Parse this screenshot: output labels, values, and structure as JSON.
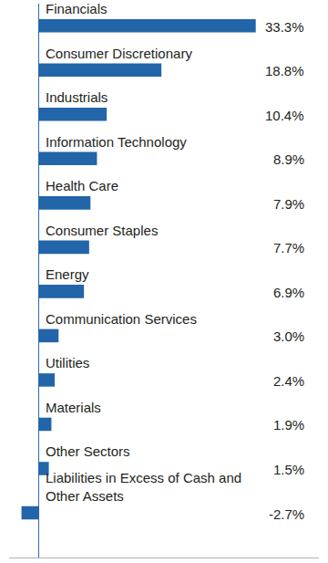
{
  "chart_data": {
    "type": "bar",
    "orientation": "horizontal",
    "categories": [
      "Financials",
      "Consumer Discretionary",
      "Industrials",
      "Information Technology",
      "Health Care",
      "Consumer Staples",
      "Energy",
      "Communication Services",
      "Utilities",
      "Materials",
      "Other Sectors",
      "Liabilities in Excess of Cash and Other Assets"
    ],
    "values": [
      33.3,
      18.8,
      10.4,
      8.9,
      7.9,
      7.7,
      6.9,
      3.0,
      2.4,
      1.9,
      1.5,
      -2.7
    ],
    "value_labels": [
      "33.3%",
      "18.8%",
      "10.4%",
      "8.9%",
      "7.9%",
      "7.7%",
      "6.9%",
      "3.0%",
      "2.4%",
      "1.9%",
      "1.5%",
      "-2.7%"
    ],
    "color": "#2265a8",
    "xlim": [
      -4.6,
      43
    ],
    "xticks": [],
    "grid": false,
    "data_labels": true,
    "tick_labels": false
  }
}
